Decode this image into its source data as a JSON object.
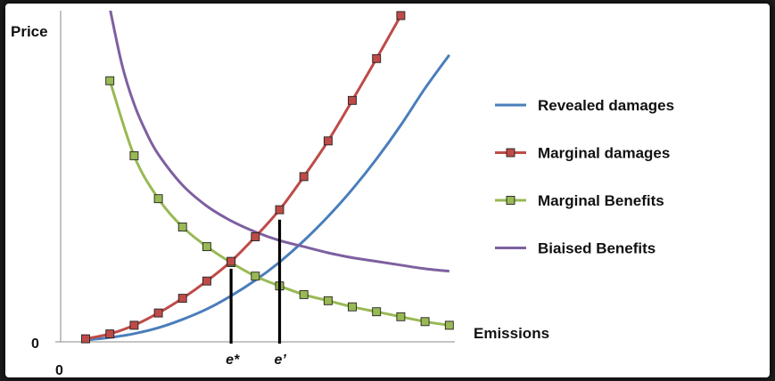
{
  "chart_data": {
    "type": "line",
    "title": "",
    "ylabel": "Price",
    "xlabel": "Emissions",
    "y_origin_label": "0",
    "x_origin_label": "0",
    "xlim": [
      0,
      15
    ],
    "ylim": [
      0,
      13
    ],
    "x_markers": [
      1,
      2,
      3,
      4,
      5,
      6,
      7,
      8,
      9,
      10,
      11,
      12,
      13,
      14,
      15
    ],
    "series": [
      {
        "name": "Revealed damages",
        "color": "#4a7ebb",
        "marker": "none",
        "x": [
          0,
          1,
          2,
          3,
          4,
          5,
          6,
          7,
          8,
          9,
          10,
          11,
          12,
          13,
          14,
          15
        ],
        "y": [
          0.0,
          0.1,
          0.26,
          0.5,
          0.84,
          1.26,
          1.8,
          2.43,
          3.17,
          4.04,
          5.03,
          6.13,
          7.37,
          8.74,
          10.24,
          11.6
        ]
      },
      {
        "name": "Marginal damages",
        "color": "#be4b48",
        "marker": "square",
        "x": [
          0,
          1,
          2,
          3,
          4,
          5,
          6,
          7,
          8,
          9,
          10,
          11,
          12,
          13
        ],
        "y": [
          0.05,
          0.25,
          0.6,
          1.1,
          1.7,
          2.4,
          3.2,
          4.2,
          5.3,
          6.65,
          8.1,
          9.75,
          11.45,
          13.2
        ]
      },
      {
        "name": "Marginal Benefits",
        "color": "#98b954",
        "marker": "square",
        "x": [
          1,
          2,
          3,
          4,
          5,
          6,
          7,
          8,
          9,
          10,
          11,
          12,
          13,
          14,
          15
        ],
        "y": [
          10.55,
          7.5,
          5.75,
          4.6,
          3.8,
          3.15,
          2.6,
          2.2,
          1.85,
          1.6,
          1.35,
          1.15,
          0.95,
          0.75,
          0.6
        ]
      },
      {
        "name": "Biaised Benefits",
        "color": "#7d60a0",
        "marker": "none",
        "x": [
          1,
          1.5,
          2,
          2.5,
          3,
          4,
          5,
          6,
          7,
          8,
          9,
          10,
          11,
          12,
          13,
          14,
          15
        ],
        "y": [
          13.5,
          11.2,
          9.6,
          8.45,
          7.55,
          6.3,
          5.45,
          4.85,
          4.4,
          4.05,
          3.8,
          3.55,
          3.35,
          3.2,
          3.05,
          2.9,
          2.8
        ]
      }
    ],
    "vlines": [
      {
        "label": "e*",
        "x": 6,
        "y": 2.9
      },
      {
        "label": "e’",
        "x": 8,
        "y": 4.9
      }
    ],
    "legend_position": "right",
    "grid": false
  }
}
